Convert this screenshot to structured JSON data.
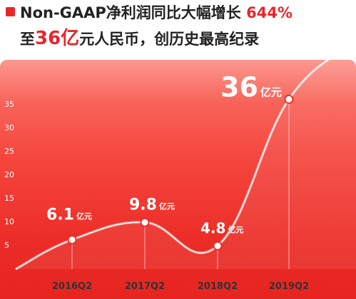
{
  "headline": {
    "line1_text": "Non-GAAP净利润同比大幅增长 ",
    "line1_highlight": "644%",
    "line2_prefix": "至",
    "line2_highlight": "36亿",
    "line2_suffix": "元人民币，创历史最高纪录"
  },
  "colors": {
    "accent": "#e8262a",
    "card_top": "#fb7a6e",
    "card_bottom": "#e62420",
    "point_fill": "#ffffff"
  },
  "chart_data": {
    "type": "line",
    "title": "",
    "xlabel": "",
    "ylabel": "",
    "categories": [
      "2016Q2",
      "2017Q2",
      "2018Q2",
      "2019Q2"
    ],
    "values": [
      6.1,
      9.8,
      4.8,
      36
    ],
    "value_labels": [
      "6.1",
      "9.8",
      "4.8",
      "36"
    ],
    "unit": "亿元",
    "yticks": [
      "5",
      "10",
      "15",
      "20",
      "25",
      "30",
      "35"
    ],
    "ylim": [
      0,
      38
    ],
    "grid": false,
    "legend": "none"
  }
}
